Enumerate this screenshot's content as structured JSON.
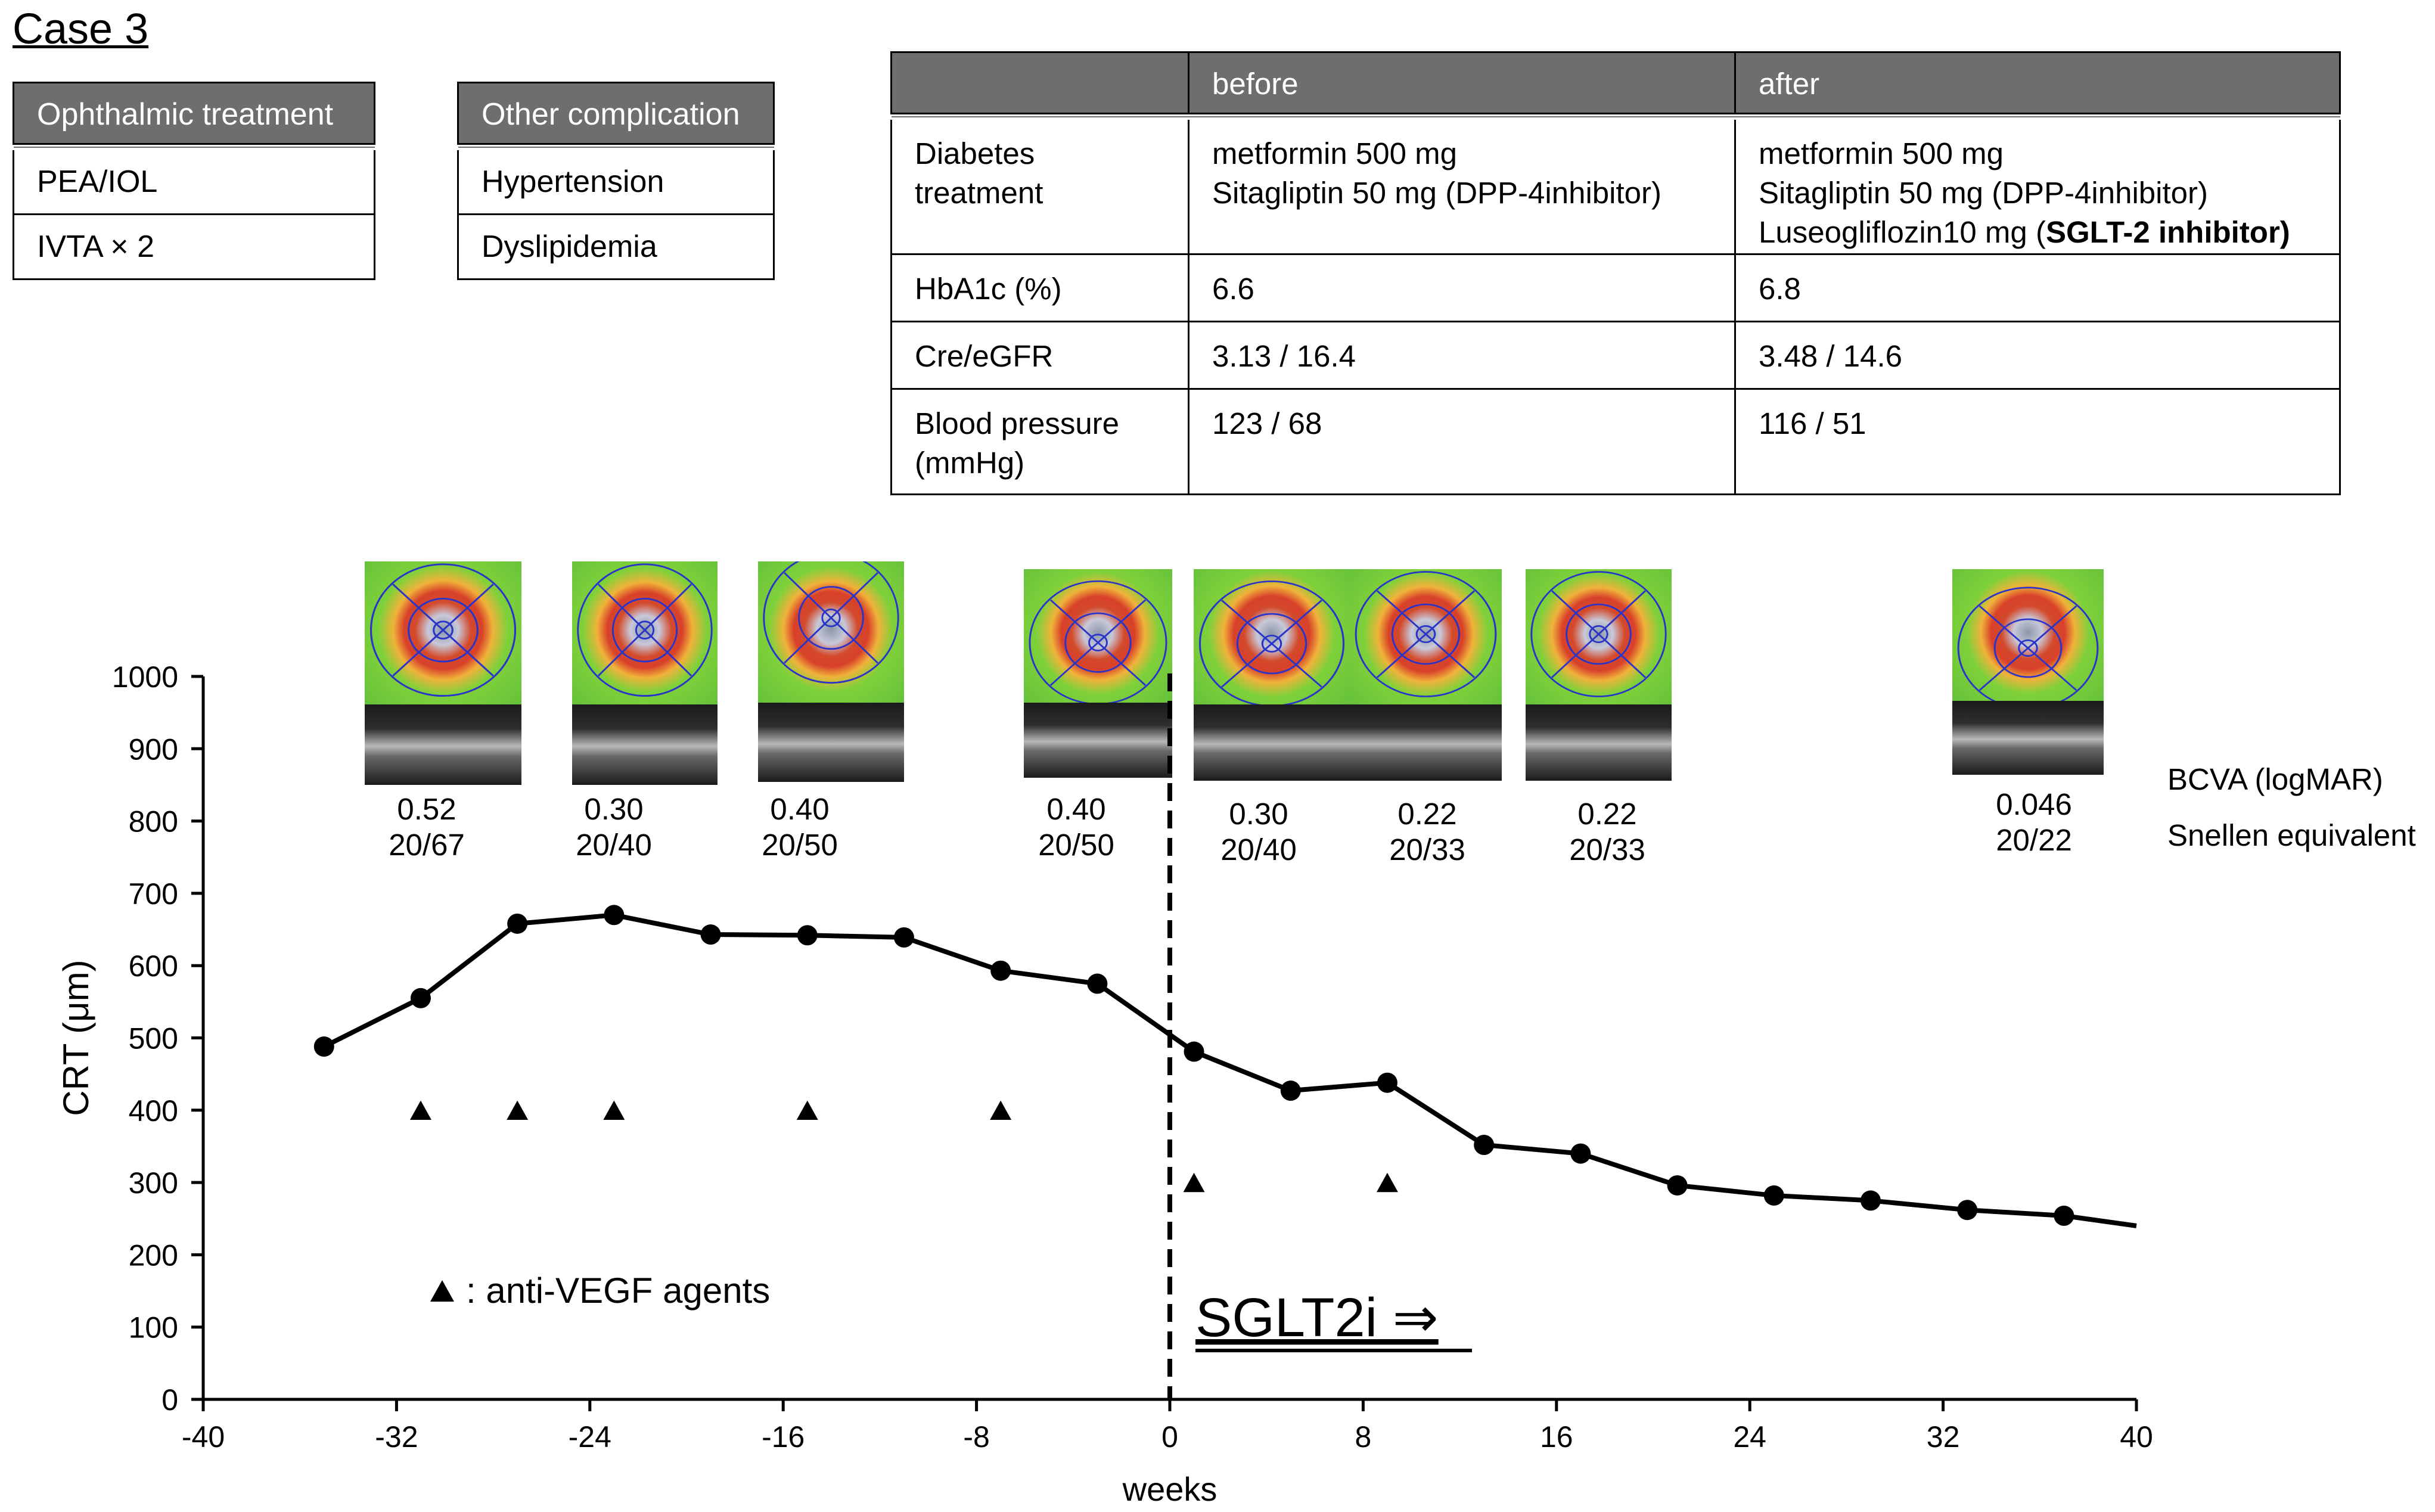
{
  "case_title": "Case 3",
  "ophthalmic": {
    "header": "Ophthalmic treatment",
    "items": [
      "PEA/IOL",
      "IVTA × 2"
    ]
  },
  "other": {
    "header": "Other complication",
    "items": [
      "Hypertension",
      "Dyslipidemia"
    ]
  },
  "drug_table": {
    "headers": [
      "",
      "before",
      "after"
    ],
    "rows": [
      {
        "label": [
          "Diabetes",
          "treatment"
        ],
        "before": [
          "metformin 500 mg",
          "Sitagliptin 50 mg (DPP-4inhibitor)"
        ],
        "after": [
          "metformin 500 mg",
          "Sitagliptin 50 mg (DPP-4inhibitor)"
        ],
        "after_last_prefix": "Luseogliflozin10 mg (",
        "after_last_bold": "SGLT-2 inhibitor)"
      },
      {
        "label": [
          "HbA1c (%)"
        ],
        "before": [
          "6.6"
        ],
        "after": [
          "6.8"
        ]
      },
      {
        "label": [
          "Cre/eGFR"
        ],
        "before": [
          "3.13 / 16.4"
        ],
        "after": [
          "3.48 / 14.6"
        ]
      },
      {
        "label": [
          "Blood pressure",
          "(mmHg)"
        ],
        "before": [
          "123 / 68"
        ],
        "after": [
          "116 / 51"
        ]
      }
    ]
  },
  "acuity_labels": {
    "logmar": "BCVA (logMAR)",
    "snellen": "Snellen equivalent"
  },
  "acuity": [
    {
      "week": -31,
      "logmar": "0.52",
      "snellen": "20/67"
    },
    {
      "week": -24,
      "logmar": "0.30",
      "snellen": "20/40"
    },
    {
      "week": -17,
      "logmar": "0.40",
      "snellen": "20/50"
    },
    {
      "week": -3,
      "logmar": "0.40",
      "snellen": "20/50"
    },
    {
      "week": 3,
      "logmar": "0.30",
      "snellen": "20/40"
    },
    {
      "week": 10,
      "logmar": "0.22",
      "snellen": "20/33"
    },
    {
      "week": 17,
      "logmar": "0.22",
      "snellen": "20/33"
    },
    {
      "week": 34,
      "logmar": "0.046",
      "snellen": "20/22"
    }
  ],
  "chart_data": {
    "type": "line",
    "xlabel": "weeks",
    "ylabel": "CRT (μm)",
    "xlim": [
      -40,
      40
    ],
    "ylim": [
      0,
      1000
    ],
    "xticks": [
      -40,
      -32,
      -24,
      -16,
      -8,
      0,
      8,
      16,
      24,
      32,
      40
    ],
    "yticks": [
      0,
      100,
      200,
      300,
      400,
      500,
      600,
      700,
      800,
      900,
      1000
    ],
    "series": [
      {
        "name": "CRT",
        "x": [
          -35,
          -31,
          -27,
          -23,
          -19,
          -15,
          -11,
          -7,
          -3,
          1,
          5,
          9,
          13,
          17,
          21,
          25,
          29,
          33,
          37
        ],
        "y": [
          488,
          555,
          658,
          670,
          643,
          642,
          639,
          593,
          575,
          481,
          427,
          438,
          352,
          340,
          296,
          282,
          275,
          262,
          254
        ]
      }
    ],
    "line_start": {
      "x": 0,
      "y": 505
    },
    "line_end": {
      "x": 40,
      "y": 240
    },
    "injections": {
      "name": "anti-VEGF agents",
      "x": [
        -31,
        -27,
        -23,
        -15,
        -7,
        1,
        9
      ],
      "y": [
        400,
        400,
        400,
        400,
        400,
        300,
        300
      ]
    },
    "legend_text": ": anti-VEGF agents",
    "annotation": {
      "text": "SGLT2i  ⇒",
      "x": 0
    }
  },
  "colors": {
    "header_gray": "#6e6e6e",
    "line": "#000000"
  }
}
